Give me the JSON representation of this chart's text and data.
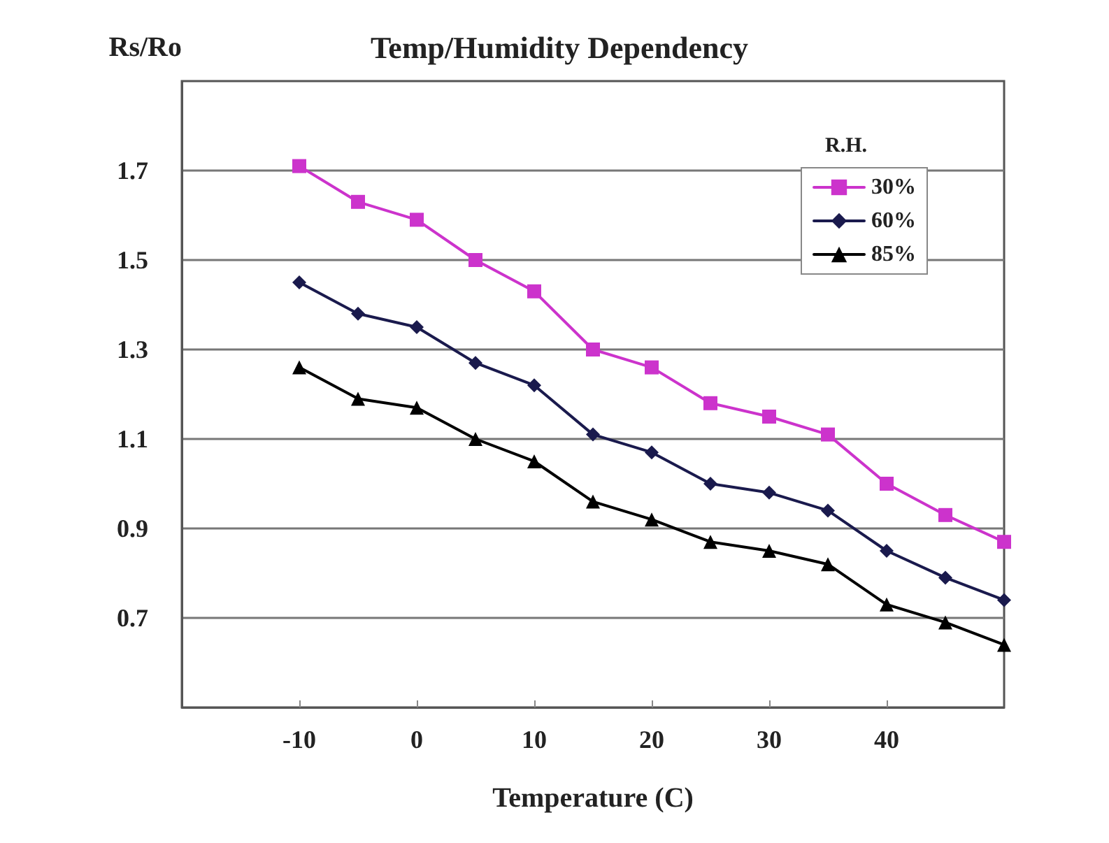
{
  "chart_data": {
    "type": "line",
    "title": "Temp/Humidity Dependency",
    "xlabel": "Temperature (C)",
    "ylabel": "Rs/Ro",
    "legend_title": "R.H.",
    "x": [
      -10,
      -5,
      0,
      5,
      10,
      15,
      20,
      25,
      30,
      35,
      40,
      45,
      50
    ],
    "series": [
      {
        "name": "30%",
        "color": "#cc33cc",
        "marker": "square",
        "values": [
          1.71,
          1.63,
          1.59,
          1.5,
          1.43,
          1.3,
          1.26,
          1.18,
          1.15,
          1.11,
          1.0,
          0.93,
          0.87
        ]
      },
      {
        "name": "60%",
        "color": "#1a1a4d",
        "marker": "diamond",
        "values": [
          1.45,
          1.38,
          1.35,
          1.27,
          1.22,
          1.11,
          1.07,
          1.0,
          0.98,
          0.94,
          0.85,
          0.79,
          0.74
        ]
      },
      {
        "name": "85%",
        "color": "#000000",
        "marker": "triangle",
        "values": [
          1.26,
          1.19,
          1.17,
          1.1,
          1.05,
          0.96,
          0.92,
          0.87,
          0.85,
          0.82,
          0.73,
          0.69,
          0.64
        ]
      }
    ],
    "xlim": [
      -20,
      50
    ],
    "xticks": [
      -10,
      0,
      10,
      20,
      30,
      40
    ],
    "ylim": [
      0.5,
      1.9
    ],
    "yticks": [
      0.7,
      0.9,
      1.1,
      1.3,
      1.5,
      1.7
    ],
    "grid": "y",
    "legend": "top right",
    "line_style": "solid"
  }
}
